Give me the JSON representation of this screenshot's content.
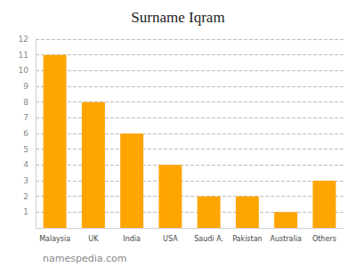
{
  "chart_data": {
    "type": "bar",
    "title": "Surname Iqram",
    "categories": [
      "Malaysia",
      "UK",
      "India",
      "USA",
      "Saudi A.",
      "Pakistan",
      "Australia",
      "Others"
    ],
    "values": [
      11,
      8,
      6,
      4,
      2,
      2,
      1,
      3
    ],
    "color": "#FFA500",
    "ylim": [
      0,
      12
    ],
    "yticks": [
      1,
      2,
      3,
      4,
      5,
      6,
      7,
      8,
      9,
      10,
      11,
      12
    ],
    "grid": true,
    "annotations": [
      "namespedia.com"
    ]
  }
}
